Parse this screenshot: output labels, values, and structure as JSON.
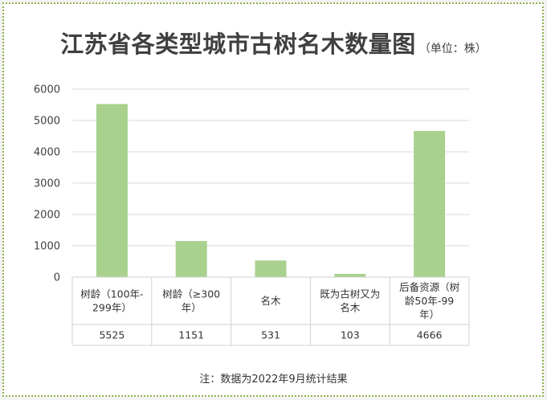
{
  "title": "江苏省各类型城市古树名木数量图",
  "unit": "（单位：株）",
  "footnote": "注：数据为2022年9月统计结果",
  "colors": {
    "bar": "#a9d18e",
    "grid": "#d9d9d9",
    "border": "#8fb04a"
  },
  "chart_data": {
    "type": "bar",
    "title": "江苏省各类型城市古树名木数量图",
    "categories": [
      [
        "树龄（100年-",
        "299年）"
      ],
      [
        "树龄（≥300",
        "年）"
      ],
      [
        "名木"
      ],
      [
        "既为古树又为",
        "名木"
      ],
      [
        "后备资源（树",
        "龄50年-99",
        "年）"
      ]
    ],
    "values": [
      5525,
      1151,
      531,
      103,
      4666
    ],
    "ylim": [
      0,
      6000
    ],
    "yticks": [
      0,
      1000,
      2000,
      3000,
      4000,
      5000,
      6000
    ],
    "grid": true,
    "legend": "none",
    "data_table": true
  }
}
